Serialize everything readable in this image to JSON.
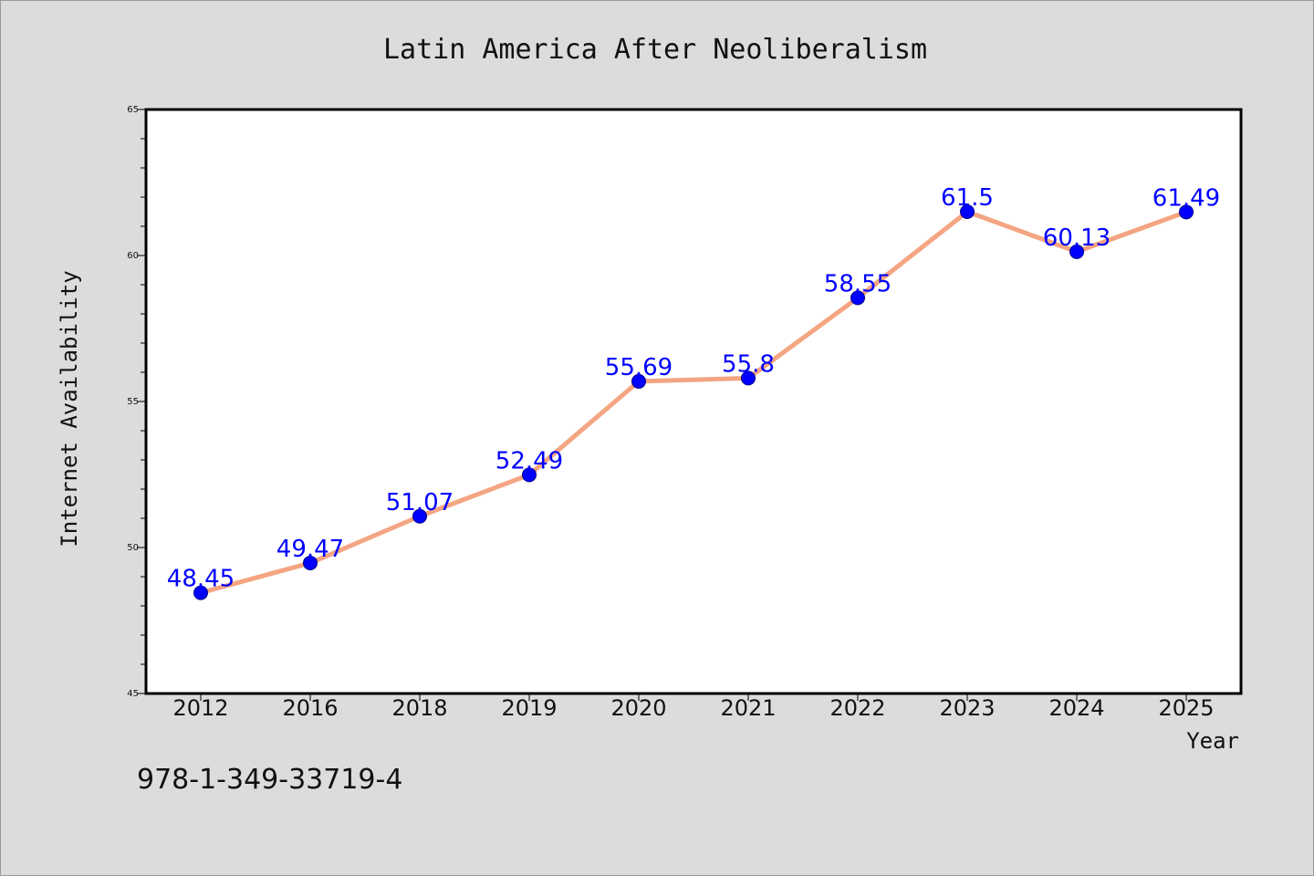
{
  "chart_data": {
    "type": "line",
    "title": "Latin America After Neoliberalism",
    "xlabel": "Year",
    "ylabel": "Internet Availability",
    "categories": [
      "2012",
      "2016",
      "2018",
      "2019",
      "2020",
      "2021",
      "2022",
      "2023",
      "2024",
      "2025"
    ],
    "series": [
      {
        "values": [
          48.45,
          49.47,
          51.07,
          52.49,
          55.69,
          55.8,
          58.55,
          61.5,
          60.13,
          61.49
        ],
        "data_labels": [
          "48.45",
          "49.47",
          "51.07",
          "52.49",
          "55.69",
          "55.8",
          "58.55",
          "61.5",
          "60.13",
          "61.49"
        ],
        "line_color": "#f4a582",
        "marker_color": "#0000ff"
      }
    ],
    "ylim": [
      45,
      65
    ],
    "yticks": [
      "45",
      "50",
      "55",
      "60",
      "65"
    ],
    "grid": false,
    "legend": "none"
  },
  "footer": {
    "isbn": "978-1-349-33719-4"
  },
  "colors": {
    "background": "#dcdcdc",
    "plot_background": "#ffffff",
    "label_color": "#0000ff"
  }
}
